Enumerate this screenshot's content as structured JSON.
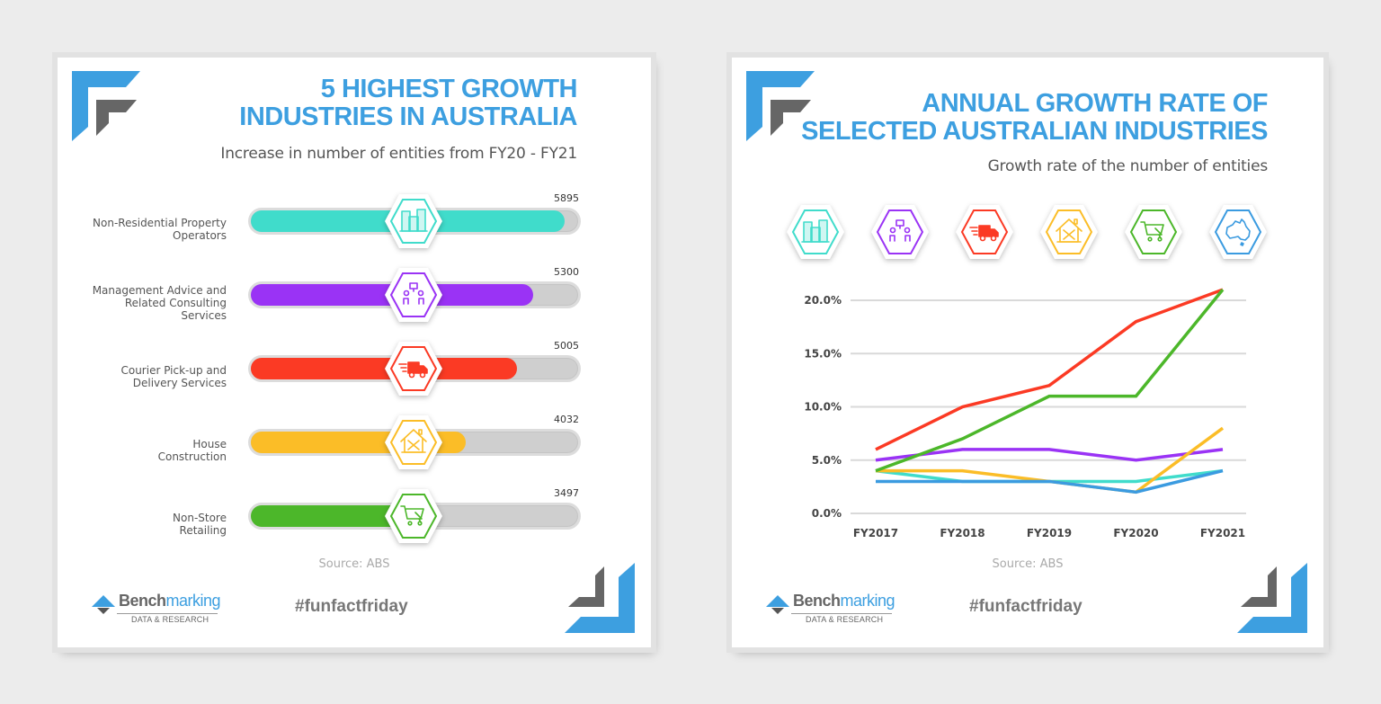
{
  "colors": {
    "brand_blue": "#3d9fe0",
    "brand_gray": "#666666",
    "teal": "#40dccb",
    "purple": "#9a33f5",
    "red": "#fb3a24",
    "yellow": "#fbbd27",
    "green": "#4cb72a",
    "blue": "#3b9be0"
  },
  "left_panel": {
    "title_line1": "5 HIGHEST GROWTH",
    "title_line2": "INDUSTRIES IN AUSTRALIA",
    "subtitle": "Increase in number of entities from FY20 - FY21",
    "source": "Source: ABS",
    "hashtag": "#funfactfriday",
    "brand": {
      "name_bold": "Bench",
      "name_light": "marking",
      "tagline": "DATA & RESEARCH"
    }
  },
  "right_panel": {
    "title_line1": "ANNUAL GROWTH RATE OF",
    "title_line2": "SELECTED AUSTRALIAN INDUSTRIES",
    "subtitle": "Growth rate of the number of entities",
    "source": "Source: ABS",
    "hashtag": "#funfactfriday",
    "brand": {
      "name_bold": "Bench",
      "name_light": "marking",
      "tagline": "DATA & RESEARCH"
    },
    "icons": [
      {
        "name": "building-icon",
        "color": "#40dccb"
      },
      {
        "name": "consulting-icon",
        "color": "#9a33f5"
      },
      {
        "name": "delivery-truck-icon",
        "color": "#fb3a24"
      },
      {
        "name": "house-tools-icon",
        "color": "#fbbd27"
      },
      {
        "name": "shopping-cart-icon",
        "color": "#4cb72a"
      },
      {
        "name": "australia-map-icon",
        "color": "#3b9be0"
      }
    ]
  },
  "chart_data": [
    {
      "type": "bar",
      "orientation": "horizontal",
      "title": "5 HIGHEST GROWTH INDUSTRIES IN AUSTRALIA",
      "subtitle": "Increase in number of entities from FY20 - FY21",
      "categories": [
        "Non-Residential Property Operators",
        "Management Advice and Related Consulting Services",
        "Courier Pick-up and Delivery Services",
        "House Construction",
        "Non-Store Retailing"
      ],
      "label_lines": [
        [
          "Non-Residential Property",
          "Operators"
        ],
        [
          "Management Advice and",
          "Related Consulting",
          "Services"
        ],
        [
          "Courier Pick-up and",
          "Delivery Services"
        ],
        [
          "House",
          "Construction"
        ],
        [
          "Non-Store",
          "Retailing"
        ]
      ],
      "values": [
        5895,
        5300,
        5005,
        4032,
        3497
      ],
      "value_labels": [
        "5895",
        "5300",
        "5005",
        "4032",
        "3497"
      ],
      "colors": [
        "#40dccb",
        "#9a33f5",
        "#fb3a24",
        "#fbbd27",
        "#4cb72a"
      ],
      "icons": [
        "building-icon",
        "consulting-icon",
        "delivery-truck-icon",
        "house-tools-icon",
        "shopping-cart-icon"
      ],
      "source": "Source: ABS"
    },
    {
      "type": "line",
      "title": "ANNUAL GROWTH RATE OF SELECTED AUSTRALIAN INDUSTRIES",
      "subtitle": "Growth rate of the number of entities",
      "x": [
        "FY2017",
        "FY2018",
        "FY2019",
        "FY2020",
        "FY2021"
      ],
      "yticks": [
        "0.0%",
        "5.0%",
        "10.0%",
        "15.0%",
        "20.0%"
      ],
      "ylim": [
        0,
        21
      ],
      "grid": true,
      "legend": "icons above chart",
      "series": [
        {
          "name": "Non-Residential Property Operators",
          "color": "#40dccb",
          "values": [
            4,
            3,
            3,
            3,
            4
          ]
        },
        {
          "name": "Management Advice and Related Consulting Services",
          "color": "#9a33f5",
          "values": [
            5,
            6,
            6,
            5,
            6
          ]
        },
        {
          "name": "Courier Pick-up and Delivery Services",
          "color": "#fb3a24",
          "values": [
            6,
            10,
            12,
            18,
            21
          ]
        },
        {
          "name": "House Construction",
          "color": "#fbbd27",
          "values": [
            4,
            4,
            3,
            2,
            8
          ]
        },
        {
          "name": "Non-Store Retailing",
          "color": "#4cb72a",
          "values": [
            4,
            7,
            11,
            11,
            21
          ]
        },
        {
          "name": "Australia (all industries)",
          "color": "#3b9be0",
          "values": [
            3,
            3,
            3,
            2,
            4
          ]
        }
      ],
      "source": "Source: ABS"
    }
  ]
}
